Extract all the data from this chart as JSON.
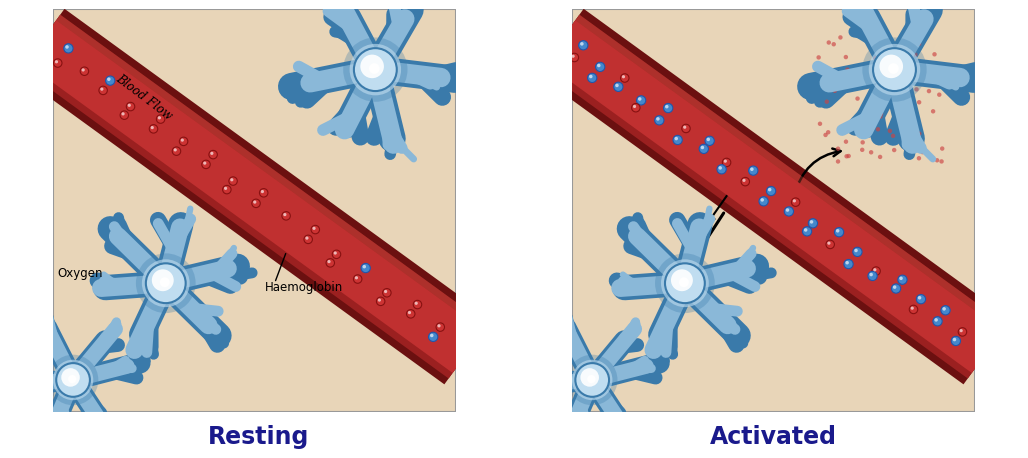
{
  "title_left": "Resting",
  "title_right": "Activated",
  "title_fontsize": 17,
  "title_fontweight": "bold",
  "title_color": "#1a1a8c",
  "bg_color": "#e8d5b8",
  "border_color": "#999999",
  "vessel_outer_color": "#6B1010",
  "vessel_mid_color": "#9B2020",
  "vessel_inner_color": "#C03030",
  "vessel_highlight_color": "#D05040",
  "neuron_fill": "#8ab8d8",
  "neuron_outline": "#3a7aaa",
  "neuron_soma_outer": "#c0ddf0",
  "neuron_soma_inner": "#e8f4ff",
  "neuron_soma_glow": "#ffffff",
  "oxygen_fill": "#4488cc",
  "oxygen_outline": "#2255aa",
  "haemo_fill": "#cc3333",
  "haemo_outline": "#881111",
  "arrow_color": "#111111",
  "label_fontsize": 9,
  "blood_flow_label": "Blood Flow",
  "oxygen_label": "Oxygen",
  "haemoglobin_label": "Haemoglobin",
  "red_dots_color": "#cc4444",
  "figsize": [
    10.28,
    4.58
  ]
}
